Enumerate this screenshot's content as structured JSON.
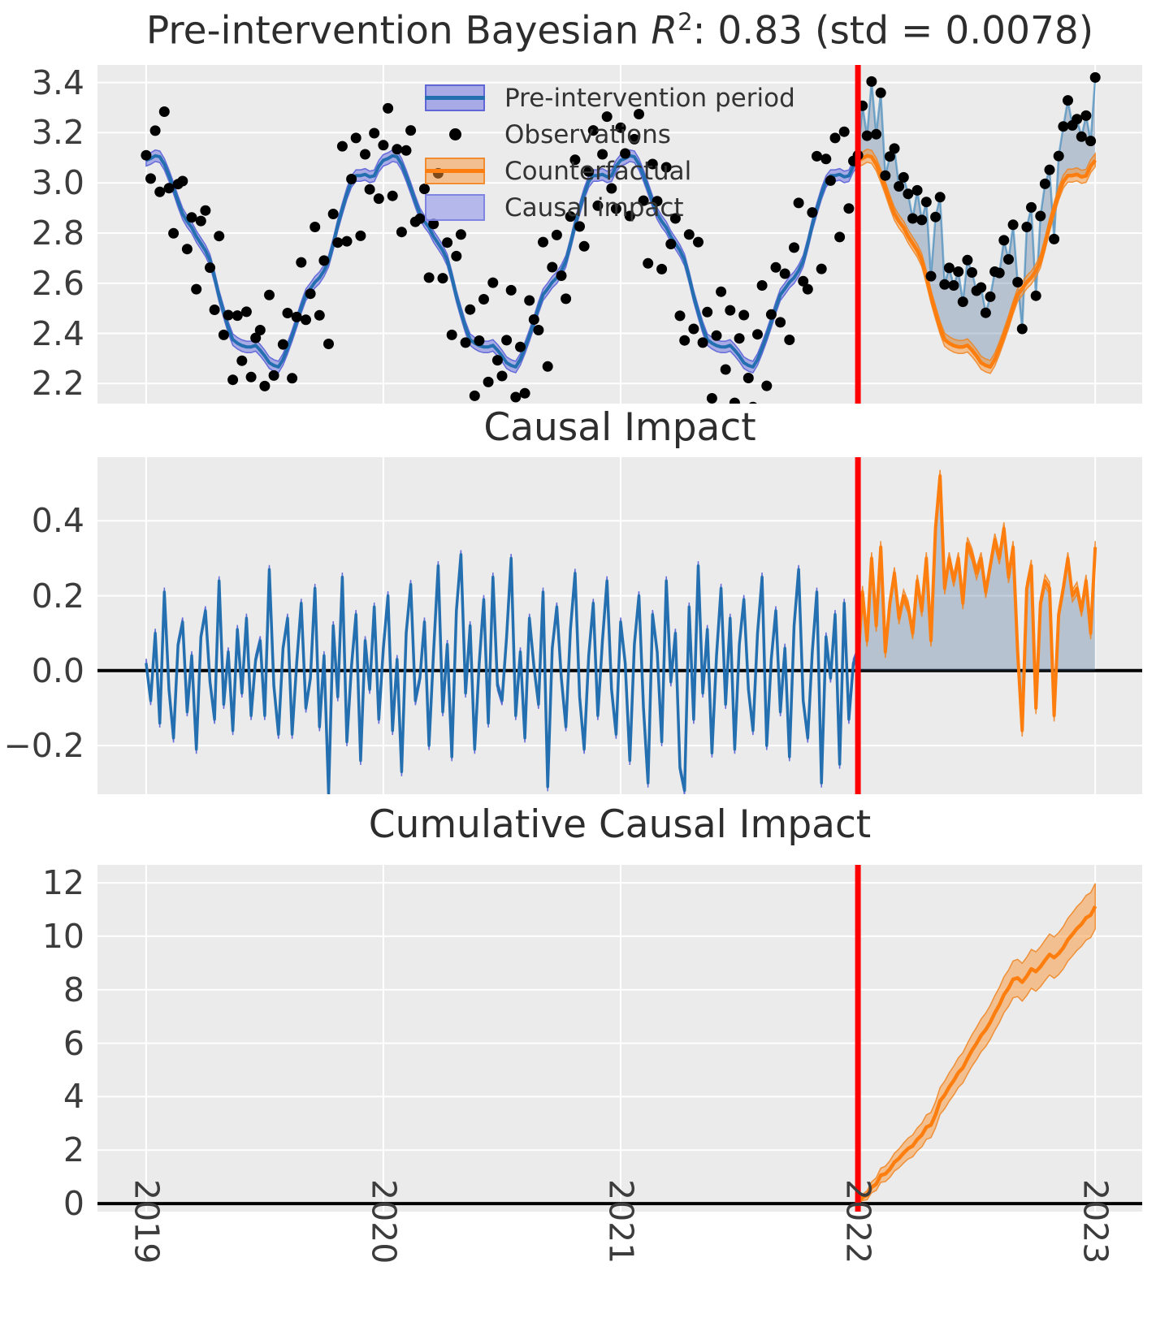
{
  "figure": {
    "bg": "#ffffff",
    "axes_bg": "#ebebeb",
    "grid_color": "#ffffff",
    "tick_color": "#3c3c3c"
  },
  "colors": {
    "blue_line": "#236fb0",
    "blue_band": "rgba(100,105,222,0.50)",
    "blue_band_edge": "rgba(84,90,214,0.85)",
    "orange_line": "#fd7e0e",
    "orange_band": "rgba(249,150,54,0.50)",
    "orange_band_edge": "rgba(240,130,30,0.85)",
    "causal_fill": "rgba(70,110,150,0.32)",
    "obs_dot": "#000000",
    "obs_line_post": "rgba(31,119,180,0.55)",
    "red_line": "#ff0000",
    "zero_line": "#000000",
    "legend_causal_patch": "rgba(151,156,235,0.65)",
    "legend_causal_edge": "rgba(122,128,224,0.9)"
  },
  "ui": {
    "title1": {
      "pre": "Pre-intervention Bayesian ",
      "var": "R",
      "sup": "2",
      "post": ": 0.83 (std = 0.0078)"
    },
    "title2": "Causal Impact",
    "title3": "Cumulative Causal Impact",
    "legend": {
      "items": [
        {
          "label": "Pre-intervention period",
          "marker": "band-blue"
        },
        {
          "label": "Observations",
          "marker": "dot"
        },
        {
          "label": "Counterfactual",
          "marker": "band-orange"
        },
        {
          "label": "Causal impact",
          "marker": "patch-lightblue"
        }
      ]
    }
  },
  "chart_data": {
    "type": "line",
    "description": "Interrupted time-series causal impact figure. Weekly data. obs_pre[i]=seasonal_weekly[i%52]+fit_dev_weekly[i%52]+obs_resid_pre[i]; fit[i]=seasonal_weekly[i%52]+fit_dev_weekly[i%52]; counterfactual[j]=seasonal_weekly[j%52]+fit_dev_weekly[j%52]; obs_post[j]=counterfactual[j]+impact_post[j]; middle panel pre=obs_resid_pre, post=impact_post; bottom panel=cumsum(impact_post).",
    "x_start": 2019,
    "x_step": 0.019230769,
    "n_pre": 157,
    "n_post": 53,
    "intervention_x": 2022,
    "xlim": [
      2018.795,
      2023.198
    ],
    "xticks": {
      "values": [
        2019,
        2020,
        2021,
        2022,
        2023
      ],
      "labels": [
        "2019",
        "2020",
        "2021",
        "2022",
        "2023"
      ]
    },
    "grid": true,
    "legend_position": "upper center of first panel",
    "seasonal_weekly": [
      3.09,
      3.087,
      3.078,
      3.064,
      3.044,
      3.019,
      2.989,
      2.955,
      2.917,
      2.876,
      2.832,
      2.786,
      2.738,
      2.69,
      2.642,
      2.594,
      2.548,
      2.504,
      2.463,
      2.425,
      2.391,
      2.361,
      2.336,
      2.316,
      2.302,
      2.293,
      2.29,
      2.293,
      2.302,
      2.316,
      2.336,
      2.361,
      2.391,
      2.425,
      2.463,
      2.504,
      2.548,
      2.594,
      2.642,
      2.69,
      2.738,
      2.786,
      2.832,
      2.876,
      2.917,
      2.955,
      2.989,
      3.019,
      3.044,
      3.064,
      3.078,
      3.087
    ],
    "fit_dev_weekly": [
      0.0,
      0.01,
      0.03,
      0.04,
      0.03,
      0.01,
      -0.01,
      -0.03,
      -0.04,
      -0.03,
      -0.01,
      0.0,
      0.02,
      0.04,
      0.05,
      0.03,
      0.0,
      -0.02,
      -0.04,
      -0.05,
      -0.03,
      -0.01,
      0.01,
      0.03,
      0.05,
      0.04,
      0.02,
      -0.01,
      -0.03,
      -0.05,
      -0.04,
      -0.02,
      0.0,
      0.02,
      0.04,
      0.05,
      0.03,
      0.01,
      -0.02,
      -0.04,
      -0.05,
      -0.03,
      0.0,
      0.02,
      0.04,
      0.05,
      0.04,
      0.01,
      -0.01,
      -0.04,
      -0.05,
      -0.02
    ],
    "obs_resid_pre": [
      0.02,
      -0.08,
      0.1,
      -0.14,
      0.21,
      -0.05,
      -0.18,
      0.07,
      0.13,
      -0.11,
      0.04,
      -0.21,
      0.09,
      0.16,
      -0.03,
      -0.13,
      0.24,
      -0.09,
      0.05,
      -0.16,
      0.11,
      -0.06,
      0.14,
      -0.12,
      0.03,
      0.08,
      -0.12,
      0.27,
      -0.04,
      -0.17,
      0.06,
      0.14,
      -0.17,
      0.02,
      0.18,
      -0.1,
      -0.02,
      0.22,
      -0.15,
      0.04,
      -0.33,
      0.12,
      -0.07,
      0.25,
      -0.19,
      0.01,
      0.15,
      -0.24,
      0.08,
      -0.05,
      0.17,
      -0.13,
      0.06,
      0.2,
      -0.16,
      0.03,
      -0.27,
      0.1,
      0.23,
      -0.08,
      -0.02,
      0.13,
      -0.2,
      0.05,
      0.28,
      -0.11,
      0.07,
      -0.23,
      0.16,
      0.31,
      -0.06,
      0.12,
      -0.21,
      0.02,
      0.19,
      -0.14,
      0.25,
      -0.04,
      -0.08,
      0.09,
      0.3,
      -0.12,
      0.05,
      -0.18,
      0.14,
      0.01,
      -0.09,
      0.21,
      -0.31,
      0.06,
      0.17,
      -0.02,
      -0.15,
      0.11,
      0.26,
      -0.07,
      -0.21,
      0.04,
      0.18,
      -0.12,
      0.08,
      0.24,
      -0.05,
      -0.17,
      0.13,
      0.02,
      -0.24,
      0.07,
      0.2,
      -0.1,
      -0.3,
      0.15,
      0.05,
      -0.19,
      0.24,
      -0.03,
      0.1,
      -0.26,
      -0.32,
      0.17,
      -0.13,
      0.28,
      -0.06,
      0.11,
      -0.22,
      0.04,
      0.22,
      -0.09,
      0.14,
      -0.21,
      0.07,
      0.19,
      -0.05,
      -0.16,
      0.1,
      0.25,
      -0.2,
      0.03,
      0.16,
      -0.11,
      0.06,
      -0.23,
      0.12,
      0.27,
      -0.08,
      -0.18,
      0.05,
      0.21,
      -0.3,
      0.09,
      -0.02,
      0.15,
      -0.25,
      0.18,
      -0.13,
      0.02,
      0.05
    ],
    "impact_post": [
      0.02,
      0.21,
      0.08,
      0.3,
      0.12,
      0.33,
      0.05,
      0.18,
      0.26,
      0.14,
      0.2,
      0.17,
      0.1,
      0.24,
      0.16,
      0.3,
      0.08,
      0.38,
      0.52,
      0.22,
      0.3,
      0.24,
      0.3,
      0.18,
      0.34,
      0.31,
      0.26,
      0.3,
      0.21,
      0.28,
      0.35,
      0.3,
      0.38,
      0.25,
      0.33,
      0.05,
      -0.16,
      0.22,
      0.28,
      -0.1,
      0.18,
      0.24,
      0.22,
      -0.12,
      0.15,
      0.22,
      0.3,
      0.2,
      0.22,
      0.16,
      0.24,
      0.1,
      0.33
    ],
    "band_halfwidth": {
      "fit": 0.023,
      "counterfactual": 0.026,
      "impact_pre": 0.012,
      "impact_post": 0.016,
      "cumulative_coef": 0.118
    },
    "panels": [
      {
        "id": "fit",
        "title": "Pre-intervention Bayesian R2: 0.83 (std = 0.0078)",
        "ylim": [
          2.12,
          3.47
        ],
        "yticks": {
          "values": [
            3.4,
            3.2,
            3.0,
            2.8,
            2.6,
            2.4,
            2.2
          ],
          "labels": [
            "3.4",
            "3.2",
            "3.0",
            "2.8",
            "2.6",
            "2.4",
            "2.2"
          ]
        }
      },
      {
        "id": "impact",
        "title": "Causal Impact",
        "ylim": [
          -0.33,
          0.57
        ],
        "zero_line": 0,
        "yticks": {
          "values": [
            0.4,
            0.2,
            0.0,
            -0.2
          ],
          "labels": [
            "0.4",
            "0.2",
            "0.0",
            "−0.2"
          ]
        }
      },
      {
        "id": "cumulative",
        "title": "Cumulative Causal Impact",
        "ylim": [
          -0.3,
          12.67
        ],
        "zero_line": 0,
        "yticks": {
          "values": [
            12,
            10,
            8,
            6,
            4,
            2,
            0
          ],
          "labels": [
            "12",
            "10",
            "8",
            "6",
            "4",
            "2",
            "0"
          ]
        }
      }
    ]
  }
}
